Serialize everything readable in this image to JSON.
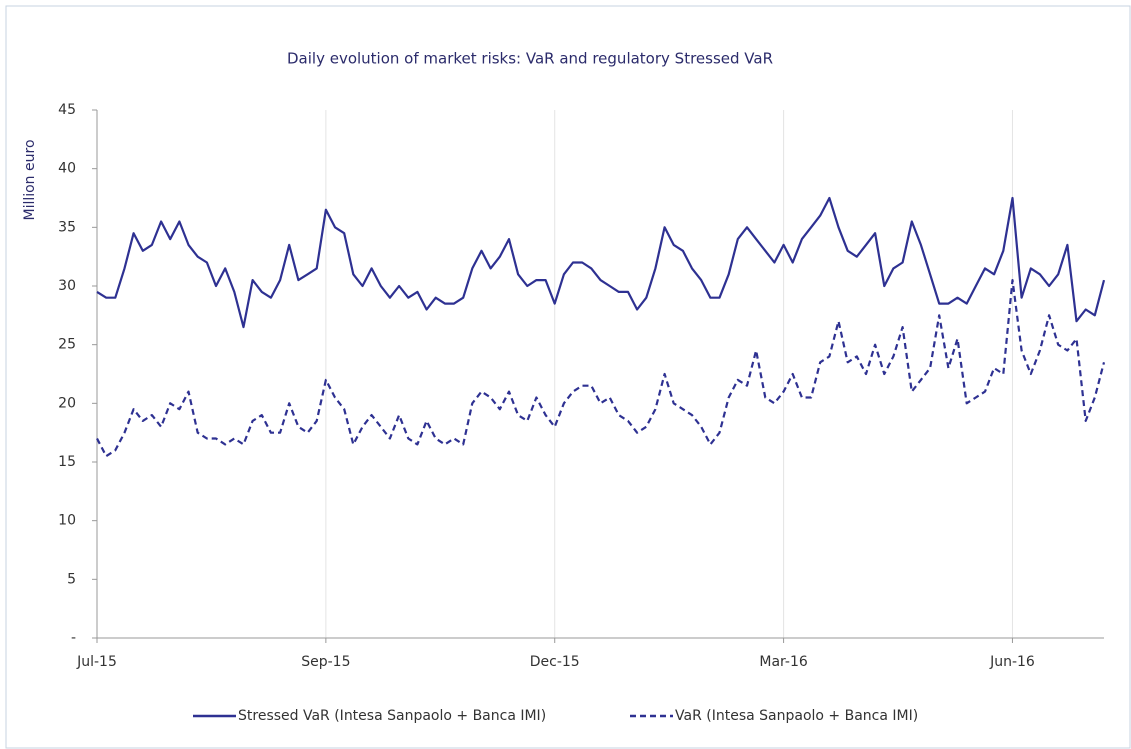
{
  "chart_data": {
    "type": "line",
    "title": "Daily evolution of market risks: VaR and regulatory Stressed VaR",
    "y_label": "Million euro",
    "categories": [
      "Jul-15",
      null,
      null,
      null,
      null,
      null,
      null,
      null,
      null,
      null,
      null,
      null,
      null,
      null,
      null,
      null,
      null,
      null,
      null,
      null,
      null,
      null,
      null,
      null,
      null,
      "Sep-15",
      null,
      null,
      null,
      null,
      null,
      null,
      null,
      null,
      null,
      null,
      null,
      null,
      null,
      null,
      null,
      null,
      null,
      null,
      null,
      null,
      null,
      null,
      null,
      null,
      "Dec-15",
      null,
      null,
      null,
      null,
      null,
      null,
      null,
      null,
      null,
      null,
      null,
      null,
      null,
      null,
      null,
      null,
      null,
      null,
      null,
      null,
      null,
      null,
      null,
      null,
      "Mar-16",
      null,
      null,
      null,
      null,
      null,
      null,
      null,
      null,
      null,
      null,
      null,
      null,
      null,
      null,
      null,
      null,
      null,
      null,
      null,
      null,
      null,
      null,
      null,
      null,
      "Jun-16",
      null,
      null,
      null,
      null,
      null,
      null,
      null,
      null,
      null,
      null
    ],
    "series": [
      {
        "name": "Stressed VaR (Intesa Sanpaolo + Banca IMI)",
        "color": "#2e3192",
        "linestyle": "solid",
        "values": [
          29.5,
          29,
          29,
          31.5,
          34.5,
          33,
          33.5,
          35.5,
          34,
          35.5,
          33.5,
          32.5,
          32,
          30,
          31.5,
          29.5,
          26.5,
          30.5,
          29.5,
          29,
          30.5,
          33.5,
          30.5,
          31,
          31.5,
          36.5,
          35,
          34.5,
          31,
          30,
          31.5,
          30,
          29,
          30,
          29,
          29.5,
          28,
          29,
          28.5,
          28.5,
          29,
          31.5,
          33,
          31.5,
          32.5,
          34,
          31,
          30,
          30.5,
          30.5,
          28.5,
          31,
          32,
          32,
          31.5,
          30.5,
          30,
          29.5,
          29.5,
          28,
          29,
          31.5,
          35,
          33.5,
          33,
          31.5,
          30.5,
          29,
          29,
          31,
          34,
          35,
          34,
          33,
          32,
          33.5,
          32,
          34,
          35,
          36,
          37.5,
          35,
          33,
          32.5,
          33.5,
          34.5,
          30,
          31.5,
          32,
          35.5,
          33.5,
          31,
          28.5,
          28.5,
          29,
          28.5,
          30,
          31.5,
          31,
          33,
          37.5,
          29,
          31.5,
          31,
          30,
          31,
          33.5,
          27,
          28,
          27.5,
          30.5
        ]
      },
      {
        "name": "VaR (Intesa Sanpaolo + Banca IMI)",
        "color": "#2e3192",
        "linestyle": "dashed",
        "values": [
          17,
          15.5,
          16,
          17.5,
          19.5,
          18.5,
          19,
          18,
          20,
          19.5,
          21,
          17.5,
          17,
          17,
          16.5,
          17,
          16.5,
          18.5,
          19,
          17.5,
          17.5,
          20,
          18,
          17.5,
          18.5,
          22,
          20.5,
          19.5,
          16.5,
          18,
          19,
          18,
          17,
          19,
          17,
          16.5,
          18.5,
          17,
          16.5,
          17,
          16.5,
          20,
          21,
          20.5,
          19.5,
          21,
          19,
          18.5,
          20.5,
          19,
          18,
          20,
          21,
          21.5,
          21.5,
          20,
          20.5,
          19,
          18.5,
          17.5,
          18,
          19.5,
          22.5,
          20,
          19.5,
          19,
          18,
          16.5,
          17.5,
          20.5,
          22,
          21.5,
          24.5,
          20.5,
          20,
          21,
          22.5,
          20.5,
          20.5,
          23.5,
          24,
          27,
          23.5,
          24,
          22.5,
          25,
          22.5,
          24,
          26.5,
          21,
          22,
          23,
          27.5,
          23,
          25.5,
          20,
          20.5,
          21,
          23,
          22.5,
          30.5,
          24.5,
          22.5,
          24.5,
          27.5,
          25,
          24.5,
          25.5,
          18.5,
          20.5,
          23.5
        ]
      }
    ],
    "ylim": [
      0,
      45
    ],
    "yticks": [
      {
        "value": 0,
        "label": "-"
      },
      5,
      10,
      15,
      20,
      25,
      30,
      35,
      40,
      45
    ],
    "grid": true
  }
}
